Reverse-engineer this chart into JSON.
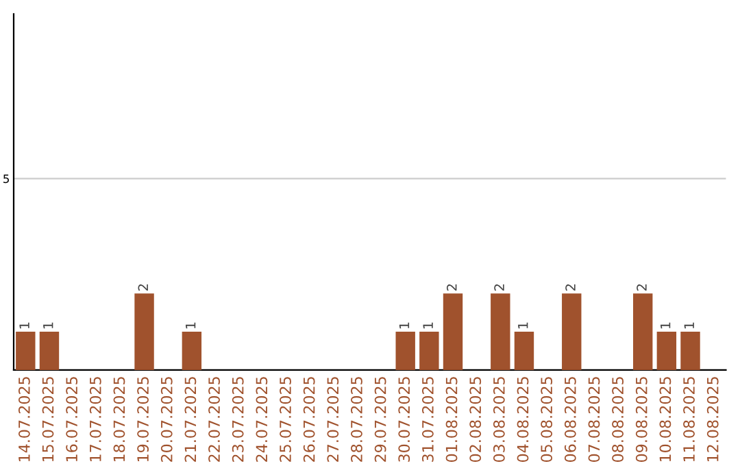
{
  "chart_data": {
    "type": "bar",
    "categories": [
      "14.07.2025",
      "15.07.2025",
      "16.07.2025",
      "17.07.2025",
      "18.07.2025",
      "19.07.2025",
      "20.07.2025",
      "21.07.2025",
      "22.07.2025",
      "23.07.2025",
      "24.07.2025",
      "25.07.2025",
      "26.07.2025",
      "27.07.2025",
      "28.07.2025",
      "29.07.2025",
      "30.07.2025",
      "31.07.2025",
      "01.08.2025",
      "02.08.2025",
      "03.08.2025",
      "04.08.2025",
      "05.08.2025",
      "06.08.2025",
      "07.08.2025",
      "08.08.2025",
      "09.08.2025",
      "10.08.2025",
      "11.08.2025",
      "12.08.2025"
    ],
    "values": [
      1,
      1,
      0,
      0,
      0,
      2,
      0,
      1,
      0,
      0,
      0,
      0,
      0,
      0,
      0,
      0,
      1,
      1,
      2,
      0,
      2,
      1,
      0,
      2,
      0,
      0,
      2,
      1,
      1,
      0
    ],
    "value_labels": [
      "1",
      "1",
      null,
      null,
      null,
      "2",
      null,
      "1",
      null,
      null,
      null,
      null,
      null,
      null,
      null,
      null,
      "1",
      "1",
      "2",
      null,
      "2",
      "1",
      null,
      "2",
      null,
      null,
      "2",
      "1",
      "1",
      null
    ],
    "color": "#a0522d",
    "ylim": [
      0,
      9.3
    ],
    "yticks": [
      5
    ],
    "grid": "y"
  }
}
